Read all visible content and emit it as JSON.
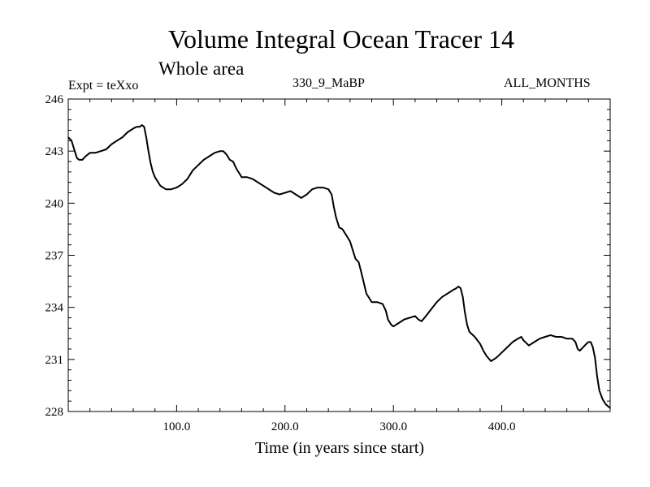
{
  "chart_data": {
    "type": "line",
    "title": "Volume Integral Ocean Tracer 14",
    "subtitle": "Whole area",
    "annotations": {
      "experiment": "Expt = teXxo",
      "period": "330_9_MaBP",
      "season": "ALL_MONTHS"
    },
    "xlabel": "Time (in years since start)",
    "ylabel": "",
    "xlim": [
      0,
      500
    ],
    "ylim": [
      228,
      246
    ],
    "xticks": [
      100,
      200,
      300,
      400
    ],
    "xtick_labels": [
      "100.0",
      "200.0",
      "300.0",
      "400.0"
    ],
    "yticks": [
      228,
      231,
      234,
      237,
      240,
      243,
      246
    ],
    "ytick_labels": [
      "228",
      "231",
      "234",
      "237",
      "240",
      "243",
      "246"
    ],
    "grid": false,
    "series": [
      {
        "color": "#000000",
        "x": [
          0,
          3,
          6,
          8,
          10,
          13,
          16,
          20,
          25,
          30,
          35,
          40,
          45,
          50,
          55,
          60,
          63,
          66,
          68,
          70,
          72,
          74,
          76,
          78,
          80,
          85,
          90,
          95,
          100,
          105,
          110,
          115,
          120,
          125,
          130,
          135,
          140,
          143,
          146,
          149,
          152,
          155,
          158,
          160,
          165,
          170,
          175,
          180,
          185,
          190,
          195,
          200,
          205,
          210,
          215,
          220,
          225,
          230,
          235,
          240,
          243,
          245,
          247,
          250,
          253,
          255,
          258,
          260,
          263,
          265,
          268,
          270,
          272,
          275,
          278,
          280,
          285,
          290,
          293,
          295,
          298,
          300,
          305,
          310,
          315,
          320,
          323,
          326,
          330,
          335,
          340,
          345,
          350,
          355,
          358,
          360,
          362,
          364,
          366,
          368,
          370,
          375,
          380,
          383,
          386,
          390,
          395,
          400,
          405,
          410,
          415,
          418,
          420,
          425,
          430,
          435,
          440,
          445,
          450,
          455,
          460,
          465,
          468,
          470,
          472,
          475,
          478,
          480,
          482,
          484,
          486,
          488,
          490,
          493,
          496,
          500
        ],
        "y": [
          243.8,
          243.6,
          243.0,
          242.6,
          242.5,
          242.5,
          242.7,
          242.9,
          242.9,
          243.0,
          243.1,
          243.4,
          243.6,
          243.8,
          244.1,
          244.3,
          244.4,
          244.4,
          244.5,
          244.4,
          243.8,
          243.0,
          242.3,
          241.8,
          241.5,
          241.0,
          240.8,
          240.8,
          240.9,
          241.1,
          241.4,
          241.9,
          242.2,
          242.5,
          242.7,
          242.9,
          243.0,
          243.0,
          242.8,
          242.5,
          242.4,
          242.0,
          241.7,
          241.5,
          241.5,
          241.4,
          241.2,
          241.0,
          240.8,
          240.6,
          240.5,
          240.6,
          240.7,
          240.5,
          240.3,
          240.5,
          240.8,
          240.9,
          240.9,
          240.8,
          240.5,
          239.8,
          239.2,
          238.6,
          238.5,
          238.3,
          238.0,
          237.8,
          237.2,
          236.8,
          236.6,
          236.1,
          235.6,
          234.8,
          234.5,
          234.3,
          234.3,
          234.2,
          233.8,
          233.3,
          233.0,
          232.9,
          233.1,
          233.3,
          233.4,
          233.5,
          233.3,
          233.2,
          233.5,
          233.9,
          234.3,
          234.6,
          234.8,
          235.0,
          235.1,
          235.2,
          235.1,
          234.6,
          233.7,
          233.0,
          232.6,
          232.3,
          231.9,
          231.5,
          231.2,
          230.9,
          231.1,
          231.4,
          231.7,
          232.0,
          232.2,
          232.3,
          232.1,
          231.8,
          232.0,
          232.2,
          232.3,
          232.4,
          232.3,
          232.3,
          232.2,
          232.2,
          232.0,
          231.6,
          231.5,
          231.7,
          231.9,
          232.0,
          232.0,
          231.7,
          231.1,
          230.0,
          229.2,
          228.7,
          228.4,
          228.2
        ]
      }
    ]
  }
}
